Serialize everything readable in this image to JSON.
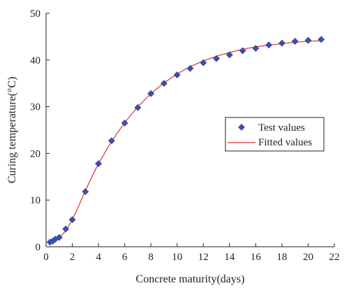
{
  "chart_data": {
    "type": "scatter",
    "title": "",
    "xlabel": "Concrete maturity(days)",
    "ylabel": "Curing temperature(°C)",
    "xlim": [
      0,
      22
    ],
    "ylim": [
      0,
      50
    ],
    "x_ticks": [
      0,
      2,
      4,
      6,
      8,
      10,
      12,
      14,
      16,
      18,
      20,
      22
    ],
    "y_ticks": [
      0,
      10,
      20,
      30,
      40,
      50
    ],
    "grid": false,
    "legend_position": "right-middle",
    "series": [
      {
        "name": "Test values",
        "marker": "diamond",
        "color": "#3b4fa8",
        "x": [
          0.3,
          0.5,
          0.7,
          1.0,
          1.5,
          2.0,
          3.0,
          4.0,
          5.0,
          6.0,
          7.0,
          8.0,
          9.0,
          10.0,
          11.0,
          12.0,
          13.0,
          14.0,
          15.0,
          16.0,
          17.0,
          18.0,
          19.0,
          20.0,
          21.0
        ],
        "y": [
          1.0,
          1.2,
          1.6,
          2.0,
          3.8,
          5.8,
          11.8,
          17.8,
          22.7,
          26.5,
          29.8,
          32.8,
          35.0,
          36.8,
          38.2,
          39.4,
          40.3,
          41.1,
          42.0,
          42.5,
          43.2,
          43.6,
          44.0,
          44.2,
          44.4
        ]
      },
      {
        "name": "Fitted values",
        "style": "line",
        "color": "#e03030",
        "x": [
          0.3,
          0.5,
          1.0,
          1.5,
          2.0,
          2.5,
          3.0,
          3.5,
          4.0,
          5.0,
          6.0,
          7.0,
          8.0,
          9.0,
          10.0,
          11.0,
          12.0,
          13.0,
          14.0,
          15.0,
          16.0,
          17.0,
          18.0,
          19.0,
          20.0,
          21.0
        ],
        "y": [
          0.9,
          1.1,
          1.9,
          3.4,
          5.8,
          8.8,
          12.0,
          15.0,
          17.8,
          22.6,
          26.6,
          30.0,
          32.8,
          35.1,
          37.0,
          38.6,
          39.8,
          40.8,
          41.6,
          42.3,
          42.8,
          43.2,
          43.5,
          43.8,
          44.0,
          44.1
        ]
      }
    ]
  }
}
